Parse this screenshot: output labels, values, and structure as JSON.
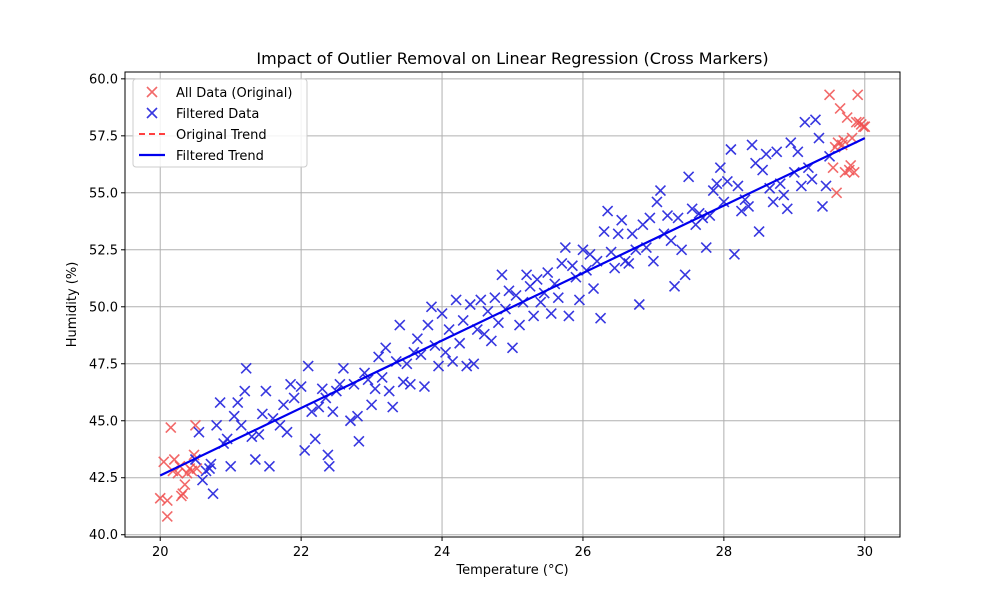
{
  "chart_data": {
    "type": "scatter",
    "title": "Impact of Outlier Removal on Linear Regression (Cross Markers)",
    "xlabel": "Temperature (°C)",
    "ylabel": "Humidity (%)",
    "xlim": [
      19.5,
      30.5
    ],
    "ylim": [
      39.9,
      60.3
    ],
    "xticks": [
      20,
      22,
      24,
      26,
      28,
      30
    ],
    "yticks": [
      40.0,
      42.5,
      45.0,
      47.5,
      50.0,
      52.5,
      55.0,
      57.5,
      60.0
    ],
    "grid": true,
    "legend_position": "upper-left",
    "colors": {
      "all_data": "#f05050",
      "filtered_data": "#2222dd",
      "original_trend": "#ff0000",
      "filtered_trend": "#0000ee"
    },
    "series": [
      {
        "name": "All Data (Original)",
        "kind": "scatter",
        "marker": "x",
        "points": [
          [
            20.0,
            41.6
          ],
          [
            20.05,
            43.2
          ],
          [
            20.1,
            41.5
          ],
          [
            20.1,
            40.8
          ],
          [
            20.15,
            44.7
          ],
          [
            20.18,
            42.8
          ],
          [
            20.2,
            43.3
          ],
          [
            20.25,
            42.7
          ],
          [
            20.28,
            43.0
          ],
          [
            20.3,
            41.7
          ],
          [
            20.32,
            41.8
          ],
          [
            20.35,
            42.2
          ],
          [
            20.38,
            42.7
          ],
          [
            20.42,
            42.9
          ],
          [
            20.45,
            42.8
          ],
          [
            20.48,
            43.5
          ],
          [
            20.5,
            44.8
          ],
          [
            20.52,
            42.9
          ],
          [
            29.5,
            59.3
          ],
          [
            29.55,
            56.1
          ],
          [
            29.58,
            57.0
          ],
          [
            29.6,
            55.0
          ],
          [
            29.62,
            57.2
          ],
          [
            29.65,
            58.7
          ],
          [
            29.68,
            57.1
          ],
          [
            29.7,
            57.3
          ],
          [
            29.72,
            55.9
          ],
          [
            29.75,
            58.3
          ],
          [
            29.78,
            56.0
          ],
          [
            29.8,
            56.2
          ],
          [
            29.82,
            57.4
          ],
          [
            29.85,
            55.9
          ],
          [
            29.88,
            58.1
          ],
          [
            29.9,
            59.3
          ],
          [
            29.92,
            58.1
          ],
          [
            29.95,
            58.0
          ],
          [
            29.98,
            57.9
          ],
          [
            30.0,
            57.9
          ]
        ]
      },
      {
        "name": "Filtered Data",
        "kind": "scatter",
        "marker": "x",
        "points": [
          [
            20.5,
            43.3
          ],
          [
            20.55,
            44.5
          ],
          [
            20.6,
            42.4
          ],
          [
            20.65,
            42.8
          ],
          [
            20.7,
            42.9
          ],
          [
            20.72,
            43.1
          ],
          [
            20.75,
            41.8
          ],
          [
            20.8,
            44.8
          ],
          [
            20.85,
            45.8
          ],
          [
            20.9,
            44.0
          ],
          [
            20.95,
            44.2
          ],
          [
            21.0,
            43.0
          ],
          [
            21.05,
            45.2
          ],
          [
            21.1,
            45.8
          ],
          [
            21.15,
            44.8
          ],
          [
            21.2,
            46.3
          ],
          [
            21.22,
            47.3
          ],
          [
            21.3,
            44.3
          ],
          [
            21.35,
            43.3
          ],
          [
            21.4,
            44.4
          ],
          [
            21.45,
            45.3
          ],
          [
            21.5,
            46.3
          ],
          [
            21.55,
            43.0
          ],
          [
            21.6,
            45.1
          ],
          [
            21.7,
            44.8
          ],
          [
            21.75,
            45.7
          ],
          [
            21.8,
            44.5
          ],
          [
            21.85,
            46.6
          ],
          [
            21.9,
            46.0
          ],
          [
            22.0,
            46.5
          ],
          [
            22.05,
            43.7
          ],
          [
            22.1,
            47.4
          ],
          [
            22.15,
            45.4
          ],
          [
            22.2,
            44.2
          ],
          [
            22.25,
            45.6
          ],
          [
            22.3,
            46.4
          ],
          [
            22.35,
            46.0
          ],
          [
            22.38,
            43.5
          ],
          [
            22.4,
            43.0
          ],
          [
            22.45,
            45.4
          ],
          [
            22.5,
            46.3
          ],
          [
            22.55,
            46.6
          ],
          [
            22.6,
            47.3
          ],
          [
            22.7,
            45.0
          ],
          [
            22.75,
            46.6
          ],
          [
            22.8,
            45.2
          ],
          [
            22.82,
            44.1
          ],
          [
            22.9,
            47.1
          ],
          [
            22.95,
            46.8
          ],
          [
            23.0,
            45.7
          ],
          [
            23.05,
            46.4
          ],
          [
            23.1,
            47.8
          ],
          [
            23.15,
            46.9
          ],
          [
            23.2,
            48.2
          ],
          [
            23.25,
            46.3
          ],
          [
            23.3,
            45.6
          ],
          [
            23.35,
            47.6
          ],
          [
            23.4,
            49.2
          ],
          [
            23.45,
            46.7
          ],
          [
            23.5,
            47.5
          ],
          [
            23.55,
            46.6
          ],
          [
            23.6,
            48.0
          ],
          [
            23.65,
            48.6
          ],
          [
            23.7,
            47.9
          ],
          [
            23.75,
            46.5
          ],
          [
            23.8,
            49.2
          ],
          [
            23.85,
            50.0
          ],
          [
            23.9,
            48.3
          ],
          [
            23.95,
            47.4
          ],
          [
            24.0,
            49.7
          ],
          [
            24.05,
            48.0
          ],
          [
            24.1,
            49.0
          ],
          [
            24.15,
            47.6
          ],
          [
            24.2,
            50.3
          ],
          [
            24.25,
            48.4
          ],
          [
            24.3,
            49.4
          ],
          [
            24.35,
            47.4
          ],
          [
            24.4,
            50.1
          ],
          [
            24.45,
            47.5
          ],
          [
            24.5,
            49.0
          ],
          [
            24.55,
            50.3
          ],
          [
            24.6,
            48.8
          ],
          [
            24.65,
            49.8
          ],
          [
            24.7,
            48.5
          ],
          [
            24.75,
            50.4
          ],
          [
            24.8,
            49.3
          ],
          [
            24.85,
            51.4
          ],
          [
            24.9,
            49.9
          ],
          [
            24.95,
            50.7
          ],
          [
            25.0,
            48.2
          ],
          [
            25.05,
            50.5
          ],
          [
            25.1,
            49.2
          ],
          [
            25.15,
            50.2
          ],
          [
            25.2,
            51.4
          ],
          [
            25.25,
            50.9
          ],
          [
            25.3,
            49.6
          ],
          [
            25.35,
            51.2
          ],
          [
            25.4,
            50.2
          ],
          [
            25.45,
            50.6
          ],
          [
            25.5,
            51.5
          ],
          [
            25.55,
            49.7
          ],
          [
            25.6,
            51.0
          ],
          [
            25.65,
            50.4
          ],
          [
            25.7,
            51.9
          ],
          [
            25.75,
            52.6
          ],
          [
            25.8,
            49.6
          ],
          [
            25.85,
            51.8
          ],
          [
            25.9,
            51.3
          ],
          [
            25.95,
            50.3
          ],
          [
            26.0,
            52.5
          ],
          [
            26.05,
            51.6
          ],
          [
            26.1,
            52.3
          ],
          [
            26.15,
            50.8
          ],
          [
            26.2,
            52.0
          ],
          [
            26.25,
            49.5
          ],
          [
            26.3,
            53.3
          ],
          [
            26.35,
            54.2
          ],
          [
            26.4,
            52.4
          ],
          [
            26.45,
            51.7
          ],
          [
            26.5,
            53.2
          ],
          [
            26.55,
            53.8
          ],
          [
            26.6,
            52.0
          ],
          [
            26.65,
            51.9
          ],
          [
            26.7,
            53.2
          ],
          [
            26.75,
            52.5
          ],
          [
            26.8,
            50.1
          ],
          [
            26.85,
            53.6
          ],
          [
            26.9,
            52.6
          ],
          [
            26.95,
            53.9
          ],
          [
            27.0,
            52.0
          ],
          [
            27.05,
            54.6
          ],
          [
            27.1,
            55.1
          ],
          [
            27.15,
            53.2
          ],
          [
            27.2,
            54.0
          ],
          [
            27.25,
            52.9
          ],
          [
            27.3,
            50.9
          ],
          [
            27.35,
            53.9
          ],
          [
            27.4,
            52.5
          ],
          [
            27.45,
            51.4
          ],
          [
            27.5,
            55.7
          ],
          [
            27.55,
            54.3
          ],
          [
            27.6,
            53.6
          ],
          [
            27.65,
            54.1
          ],
          [
            27.7,
            53.9
          ],
          [
            27.75,
            52.6
          ],
          [
            27.8,
            54.0
          ],
          [
            27.85,
            55.1
          ],
          [
            27.9,
            55.4
          ],
          [
            27.95,
            56.1
          ],
          [
            28.0,
            54.6
          ],
          [
            28.05,
            55.5
          ],
          [
            28.1,
            56.9
          ],
          [
            28.15,
            52.3
          ],
          [
            28.2,
            55.3
          ],
          [
            28.25,
            54.2
          ],
          [
            28.3,
            54.7
          ],
          [
            28.35,
            54.4
          ],
          [
            28.4,
            57.1
          ],
          [
            28.45,
            56.3
          ],
          [
            28.5,
            53.3
          ],
          [
            28.55,
            56.0
          ],
          [
            28.6,
            56.7
          ],
          [
            28.65,
            55.2
          ],
          [
            28.7,
            54.6
          ],
          [
            28.75,
            56.8
          ],
          [
            28.8,
            55.4
          ],
          [
            28.85,
            54.9
          ],
          [
            28.9,
            54.3
          ],
          [
            28.95,
            57.2
          ],
          [
            29.0,
            55.9
          ],
          [
            29.05,
            56.8
          ],
          [
            29.1,
            55.3
          ],
          [
            29.15,
            58.1
          ],
          [
            29.2,
            56.1
          ],
          [
            29.25,
            55.6
          ],
          [
            29.3,
            58.2
          ],
          [
            29.35,
            57.4
          ],
          [
            29.4,
            54.4
          ],
          [
            29.45,
            55.3
          ],
          [
            29.5,
            56.6
          ]
        ]
      },
      {
        "name": "Original Trend",
        "kind": "line",
        "style": "dashed",
        "points": [
          [
            20.0,
            42.6
          ],
          [
            30.0,
            57.4
          ]
        ]
      },
      {
        "name": "Filtered Trend",
        "kind": "line",
        "style": "solid",
        "points": [
          [
            20.0,
            42.6
          ],
          [
            30.0,
            57.4
          ]
        ]
      }
    ]
  }
}
